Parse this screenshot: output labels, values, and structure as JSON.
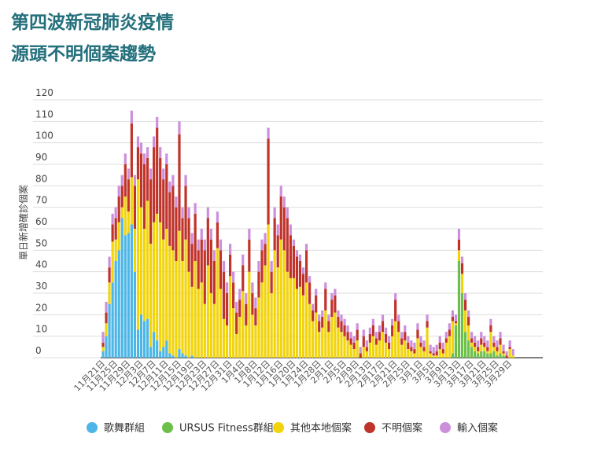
{
  "chart_data": {
    "type": "stacked_bar",
    "title": "第四波新冠肺炎疫情",
    "subtitle": "源頭不明個案趨勢",
    "y_label": "單日新增確診個案",
    "ylim": [
      0,
      120
    ],
    "yticks": [
      0,
      10,
      20,
      30,
      40,
      50,
      60,
      70,
      80,
      90,
      100,
      110,
      120
    ],
    "grid": true,
    "categories": [
      "11月21日",
      null,
      null,
      null,
      "11月25日",
      null,
      null,
      null,
      "11月29日",
      null,
      null,
      null,
      "12月3日",
      null,
      null,
      null,
      "12月7日",
      null,
      null,
      null,
      "12月11日",
      null,
      null,
      null,
      "12月15日",
      null,
      null,
      null,
      "12月19日",
      null,
      null,
      null,
      "12月23日",
      null,
      null,
      null,
      "12月27日",
      null,
      null,
      null,
      "12月31日",
      null,
      null,
      null,
      "1月4日",
      null,
      null,
      null,
      "1月8日",
      null,
      null,
      null,
      "1月12日",
      null,
      null,
      null,
      "1月16日",
      null,
      null,
      null,
      "1月20日",
      null,
      null,
      null,
      "1月24日",
      null,
      null,
      null,
      "1月28日",
      null,
      null,
      null,
      "2月1日",
      null,
      null,
      null,
      "2月5日",
      null,
      null,
      null,
      "2月9日",
      null,
      null,
      null,
      "2月13日",
      null,
      null,
      null,
      "2月17日",
      null,
      null,
      null,
      "2月21日",
      null,
      null,
      null,
      "2月25日",
      null,
      null,
      null,
      "3月1日",
      null,
      null,
      null,
      "3月5日",
      null,
      null,
      null,
      "3月9日",
      null,
      null,
      null,
      "3月13日",
      null,
      null,
      null,
      "3月17日",
      null,
      null,
      null,
      "3月21日",
      null,
      null,
      null,
      "3月25日",
      null,
      null,
      null,
      "3月29日",
      null
    ],
    "series": [
      {
        "name": "歌舞群組",
        "color": "#4db6e6",
        "values": [
          3,
          10,
          25,
          35,
          45,
          50,
          65,
          57,
          58,
          62,
          40,
          13,
          20,
          17,
          18,
          5,
          12,
          8,
          3,
          5,
          8,
          2,
          1,
          0,
          4,
          2,
          1,
          0,
          1,
          0,
          0,
          0,
          0,
          0,
          0,
          0,
          0,
          0,
          0,
          0,
          0,
          0,
          0,
          0,
          0,
          0,
          0,
          0,
          0,
          0,
          0,
          0,
          0,
          0,
          0,
          0,
          0,
          0,
          0,
          0,
          0,
          0,
          0,
          0,
          0,
          0,
          0,
          0,
          0,
          0,
          0,
          0,
          0,
          0,
          0,
          0,
          0,
          0,
          0,
          0,
          0,
          0,
          0,
          0,
          0,
          0,
          0,
          0,
          0,
          0,
          0,
          0,
          0,
          0,
          0,
          0,
          0,
          0,
          0,
          0,
          0,
          0,
          0,
          0,
          0,
          0,
          0,
          0,
          0,
          0,
          0,
          0,
          0,
          0,
          0,
          0,
          0,
          0,
          0,
          0,
          0,
          0,
          0,
          0,
          0,
          0,
          0,
          0,
          0,
          0
        ]
      },
      {
        "name": "URSUS Fitness群組",
        "color": "#6cc04a",
        "values": [
          0,
          0,
          0,
          0,
          0,
          0,
          0,
          0,
          0,
          0,
          0,
          0,
          0,
          0,
          0,
          0,
          0,
          0,
          0,
          0,
          0,
          0,
          0,
          0,
          0,
          0,
          0,
          0,
          0,
          0,
          0,
          0,
          0,
          0,
          0,
          0,
          0,
          0,
          0,
          0,
          0,
          0,
          0,
          0,
          0,
          0,
          0,
          0,
          0,
          0,
          0,
          0,
          0,
          0,
          0,
          0,
          0,
          0,
          0,
          0,
          0,
          0,
          0,
          0,
          0,
          0,
          0,
          0,
          0,
          0,
          0,
          0,
          0,
          0,
          0,
          0,
          0,
          0,
          0,
          0,
          0,
          0,
          0,
          0,
          0,
          0,
          0,
          0,
          0,
          0,
          0,
          0,
          0,
          0,
          0,
          0,
          0,
          0,
          0,
          0,
          0,
          0,
          0,
          0,
          0,
          0,
          0,
          0,
          0,
          0,
          2,
          15,
          45,
          30,
          12,
          8,
          5,
          3,
          2,
          3,
          3,
          2,
          2,
          3,
          1,
          2,
          1,
          0,
          0,
          0
        ]
      },
      {
        "name": "其他本地個案",
        "color": "#f2d40c",
        "values": [
          2,
          6,
          10,
          19,
          10,
          13,
          5,
          18,
          10,
          22,
          20,
          70,
          50,
          43,
          55,
          48,
          51,
          59,
          60,
          50,
          52,
          50,
          49,
          45,
          55,
          43,
          54,
          40,
          32,
          45,
          32,
          35,
          25,
          43,
          30,
          25,
          51,
          32,
          18,
          15,
          38,
          23,
          11,
          19,
          31,
          15,
          40,
          20,
          15,
          28,
          35,
          43,
          62,
          30,
          50,
          42,
          55,
          50,
          40,
          37,
          37,
          32,
          33,
          29,
          35,
          25,
          17,
          21,
          12,
          14,
          22,
          12,
          19,
          21,
          14,
          12,
          10,
          8,
          6,
          4,
          8,
          0,
          5,
          3,
          7,
          10,
          6,
          8,
          12,
          7,
          4,
          10,
          17,
          12,
          6,
          8,
          4,
          3,
          2,
          9,
          5,
          3,
          14,
          2,
          1,
          1,
          4,
          2,
          7,
          10,
          15,
          1,
          5,
          9,
          10,
          7,
          2,
          2,
          1,
          3,
          2,
          1,
          10,
          2,
          2,
          4,
          1,
          0,
          4,
          1
        ]
      },
      {
        "name": "不明個案",
        "color": "#c0332b",
        "values": [
          2,
          5,
          7,
          8,
          10,
          12,
          10,
          15,
          15,
          25,
          20,
          15,
          25,
          30,
          20,
          30,
          35,
          40,
          30,
          28,
          30,
          25,
          30,
          25,
          45,
          20,
          25,
          25,
          20,
          22,
          18,
          20,
          25,
          22,
          25,
          20,
          12,
          18,
          22,
          15,
          10,
          12,
          10,
          8,
          12,
          10,
          15,
          10,
          8,
          12,
          15,
          10,
          40,
          10,
          15,
          15,
          20,
          20,
          25,
          20,
          15,
          15,
          12,
          10,
          15,
          10,
          5,
          8,
          5,
          5,
          10,
          5,
          8,
          8,
          5,
          5,
          5,
          4,
          3,
          3,
          5,
          2,
          5,
          2,
          4,
          5,
          3,
          4,
          5,
          4,
          3,
          5,
          10,
          5,
          3,
          4,
          3,
          2,
          2,
          4,
          2,
          2,
          3,
          1,
          1,
          2,
          3,
          2,
          2,
          3,
          2,
          1,
          5,
          5,
          5,
          4,
          2,
          2,
          2,
          3,
          2,
          2,
          3,
          2,
          2,
          3,
          1,
          1,
          1,
          0
        ]
      },
      {
        "name": "輸入個案",
        "color": "#cc8fdc",
        "values": [
          5,
          5,
          5,
          5,
          5,
          5,
          5,
          5,
          5,
          6,
          5,
          5,
          5,
          5,
          5,
          5,
          5,
          5,
          5,
          5,
          5,
          5,
          5,
          5,
          6,
          5,
          5,
          5,
          5,
          5,
          5,
          5,
          5,
          5,
          5,
          5,
          5,
          5,
          5,
          5,
          5,
          5,
          5,
          5,
          5,
          5,
          5,
          5,
          5,
          5,
          5,
          5,
          5,
          5,
          5,
          5,
          5,
          5,
          5,
          5,
          3,
          3,
          3,
          3,
          3,
          3,
          3,
          3,
          3,
          3,
          3,
          3,
          3,
          3,
          3,
          3,
          3,
          3,
          3,
          3,
          3,
          3,
          3,
          3,
          3,
          3,
          3,
          3,
          3,
          3,
          3,
          3,
          3,
          3,
          3,
          3,
          3,
          3,
          3,
          3,
          3,
          3,
          3,
          3,
          3,
          3,
          3,
          3,
          3,
          3,
          3,
          3,
          5,
          3,
          3,
          3,
          3,
          3,
          3,
          3,
          3,
          3,
          3,
          3,
          3,
          3,
          3,
          2,
          3,
          3
        ]
      }
    ]
  }
}
